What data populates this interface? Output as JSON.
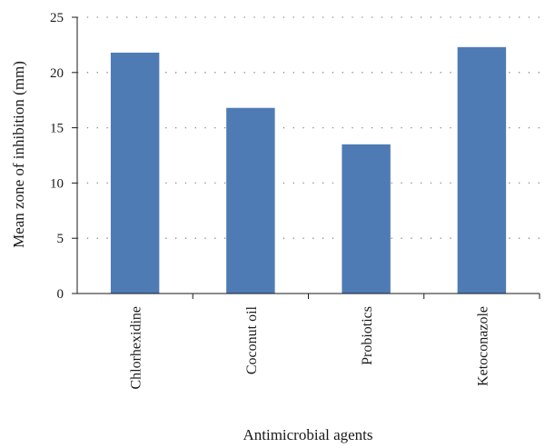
{
  "chart_data": {
    "type": "bar",
    "categories": [
      "Chlorhexidine",
      "Coconut oil",
      "Probiotics",
      "Ketoconazole"
    ],
    "values": [
      21.8,
      16.8,
      13.5,
      22.3
    ],
    "title": "",
    "xlabel": "Antimicrobial agents",
    "ylabel": "Mean zone of inhibition (mm)",
    "ylim": [
      0,
      25
    ],
    "yticks": [
      0,
      5,
      10,
      15,
      20,
      25
    ],
    "grid": true,
    "bar_color": "#4f7bb5",
    "grid_color": "#8a8a8a",
    "axis_color": "#1a1a1a"
  }
}
